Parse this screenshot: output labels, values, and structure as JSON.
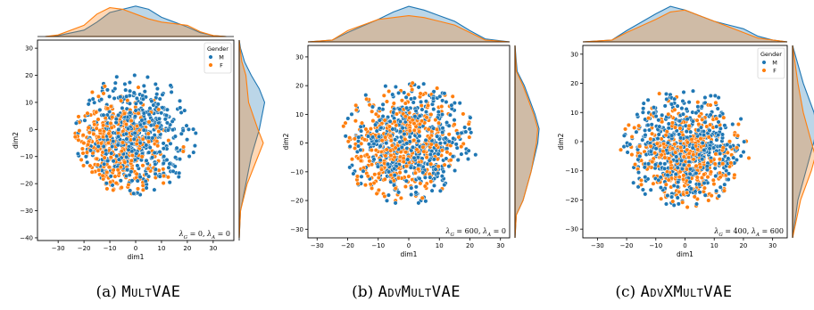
{
  "colors": {
    "M": "#1f77b4",
    "F": "#ff7f0e",
    "overlap": "#b0aea8"
  },
  "chart_data": [
    {
      "type": "scatter",
      "xlabel": "dim1",
      "ylabel": "dim2",
      "xlim": [
        -38,
        38
      ],
      "ylim": [
        -41,
        33
      ],
      "xticks": [
        -30,
        -20,
        -10,
        0,
        10,
        20,
        30
      ],
      "yticks": [
        -40,
        -30,
        -20,
        -10,
        0,
        10,
        20,
        30
      ],
      "grid": false,
      "legend": {
        "title": "Gender",
        "placement": "top-right",
        "entries": [
          "M",
          "F"
        ]
      },
      "annotation": {
        "lg_val": "0",
        "la_val": "0"
      },
      "cloud": {
        "cx": 0,
        "cy": -2,
        "rx": 23,
        "ry": 22,
        "n_m": 520,
        "n_f": 380,
        "f_cx": -8,
        "f_cy": -7
      },
      "marginal_x": [
        [
          -35,
          0
        ],
        [
          -30,
          0.03
        ],
        [
          -20,
          0.2
        ],
        [
          -15,
          0.45
        ],
        [
          -10,
          0.75
        ],
        [
          -5,
          0.85
        ],
        [
          0,
          0.95
        ],
        [
          5,
          0.85
        ],
        [
          10,
          0.6
        ],
        [
          15,
          0.45
        ],
        [
          20,
          0.3
        ],
        [
          25,
          0.12
        ],
        [
          30,
          0.03
        ],
        [
          35,
          0
        ]
      ],
      "marginal_x_f": [
        [
          -35,
          0
        ],
        [
          -30,
          0.05
        ],
        [
          -20,
          0.35
        ],
        [
          -15,
          0.7
        ],
        [
          -10,
          0.9
        ],
        [
          -5,
          0.85
        ],
        [
          0,
          0.7
        ],
        [
          5,
          0.55
        ],
        [
          10,
          0.45
        ],
        [
          15,
          0.4
        ],
        [
          20,
          0.35
        ],
        [
          25,
          0.15
        ],
        [
          30,
          0.03
        ],
        [
          35,
          0
        ]
      ],
      "marginal_y": [
        [
          -40,
          0
        ],
        [
          -30,
          0.05
        ],
        [
          -20,
          0.25
        ],
        [
          -10,
          0.45
        ],
        [
          0,
          0.75
        ],
        [
          10,
          0.95
        ],
        [
          15,
          0.75
        ],
        [
          20,
          0.45
        ],
        [
          25,
          0.2
        ],
        [
          30,
          0.05
        ],
        [
          33,
          0
        ]
      ],
      "marginal_y_f": [
        [
          -40,
          0
        ],
        [
          -30,
          0.05
        ],
        [
          -20,
          0.3
        ],
        [
          -10,
          0.7
        ],
        [
          -5,
          0.9
        ],
        [
          0,
          0.7
        ],
        [
          10,
          0.35
        ],
        [
          20,
          0.25
        ],
        [
          25,
          0.1
        ],
        [
          30,
          0.03
        ],
        [
          33,
          0
        ]
      ],
      "caption_label": "(a)",
      "caption_title": "MultVAE"
    },
    {
      "type": "scatter",
      "xlabel": "dim1",
      "ylabel": "dim2",
      "xlim": [
        -33,
        33
      ],
      "ylim": [
        -33,
        34
      ],
      "xticks": [
        -30,
        -20,
        -10,
        0,
        10,
        20,
        30
      ],
      "yticks": [
        -30,
        -20,
        -10,
        0,
        10,
        20,
        30
      ],
      "grid": false,
      "legend": null,
      "annotation": {
        "lg_val": "600",
        "la_val": "0"
      },
      "cloud": {
        "cx": 0,
        "cy": 0,
        "rx": 22,
        "ry": 21,
        "n_m": 480,
        "n_f": 420,
        "f_cx": -2,
        "f_cy": 0
      },
      "marginal_x": [
        [
          -33,
          0
        ],
        [
          -25,
          0.05
        ],
        [
          -20,
          0.25
        ],
        [
          -10,
          0.6
        ],
        [
          -5,
          0.8
        ],
        [
          0,
          0.95
        ],
        [
          5,
          0.85
        ],
        [
          10,
          0.7
        ],
        [
          15,
          0.55
        ],
        [
          20,
          0.3
        ],
        [
          25,
          0.08
        ],
        [
          33,
          0
        ]
      ],
      "marginal_x_f": [
        [
          -33,
          0
        ],
        [
          -25,
          0.05
        ],
        [
          -20,
          0.3
        ],
        [
          -10,
          0.6
        ],
        [
          -5,
          0.65
        ],
        [
          0,
          0.7
        ],
        [
          5,
          0.65
        ],
        [
          10,
          0.55
        ],
        [
          15,
          0.45
        ],
        [
          20,
          0.25
        ],
        [
          25,
          0.05
        ],
        [
          33,
          0
        ]
      ],
      "marginal_y": [
        [
          -33,
          0
        ],
        [
          -25,
          0.05
        ],
        [
          -20,
          0.3
        ],
        [
          -10,
          0.6
        ],
        [
          0,
          0.85
        ],
        [
          5,
          0.9
        ],
        [
          10,
          0.75
        ],
        [
          20,
          0.35
        ],
        [
          25,
          0.08
        ],
        [
          34,
          0
        ]
      ],
      "marginal_y_f": [
        [
          -33,
          0
        ],
        [
          -25,
          0.05
        ],
        [
          -20,
          0.3
        ],
        [
          -10,
          0.6
        ],
        [
          0,
          0.8
        ],
        [
          5,
          0.85
        ],
        [
          10,
          0.7
        ],
        [
          20,
          0.3
        ],
        [
          25,
          0.05
        ],
        [
          34,
          0
        ]
      ],
      "caption_label": "(b)",
      "caption_title": "AdvMultVAE"
    },
    {
      "type": "scatter",
      "xlabel": "dim1",
      "ylabel": "dim2",
      "xlim": [
        -35,
        35
      ],
      "ylim": [
        -33,
        33
      ],
      "xticks": [
        -30,
        -20,
        -10,
        0,
        10,
        20,
        30
      ],
      "yticks": [
        -30,
        -20,
        -10,
        0,
        10,
        20,
        30
      ],
      "grid": false,
      "legend": {
        "title": "Gender",
        "placement": "top-right",
        "entries": [
          "M",
          "F"
        ]
      },
      "annotation": {
        "lg_val": "400",
        "la_val": "600"
      },
      "cloud": {
        "cx": 0,
        "cy": -2,
        "rx": 22,
        "ry": 20,
        "n_m": 500,
        "n_f": 420,
        "f_cx": 0,
        "f_cy": -6
      },
      "marginal_x": [
        [
          -35,
          0
        ],
        [
          -25,
          0.05
        ],
        [
          -20,
          0.3
        ],
        [
          -10,
          0.75
        ],
        [
          -5,
          0.95
        ],
        [
          0,
          0.85
        ],
        [
          5,
          0.7
        ],
        [
          10,
          0.55
        ],
        [
          15,
          0.45
        ],
        [
          20,
          0.35
        ],
        [
          25,
          0.15
        ],
        [
          30,
          0.05
        ],
        [
          35,
          0
        ]
      ],
      "marginal_x_f": [
        [
          -35,
          0
        ],
        [
          -25,
          0.05
        ],
        [
          -20,
          0.25
        ],
        [
          -10,
          0.6
        ],
        [
          -5,
          0.8
        ],
        [
          0,
          0.85
        ],
        [
          5,
          0.7
        ],
        [
          10,
          0.55
        ],
        [
          15,
          0.4
        ],
        [
          20,
          0.25
        ],
        [
          25,
          0.1
        ],
        [
          35,
          0
        ]
      ],
      "marginal_y": [
        [
          -33,
          0
        ],
        [
          -20,
          0.2
        ],
        [
          -10,
          0.5
        ],
        [
          0,
          0.8
        ],
        [
          5,
          0.9
        ],
        [
          10,
          0.8
        ],
        [
          20,
          0.4
        ],
        [
          33,
          0
        ]
      ],
      "marginal_y_f": [
        [
          -33,
          0
        ],
        [
          -20,
          0.3
        ],
        [
          -10,
          0.7
        ],
        [
          -5,
          0.85
        ],
        [
          0,
          0.7
        ],
        [
          10,
          0.4
        ],
        [
          20,
          0.2
        ],
        [
          33,
          0
        ]
      ],
      "caption_label": "(c)",
      "caption_title": "AdvXMultVAE"
    }
  ]
}
